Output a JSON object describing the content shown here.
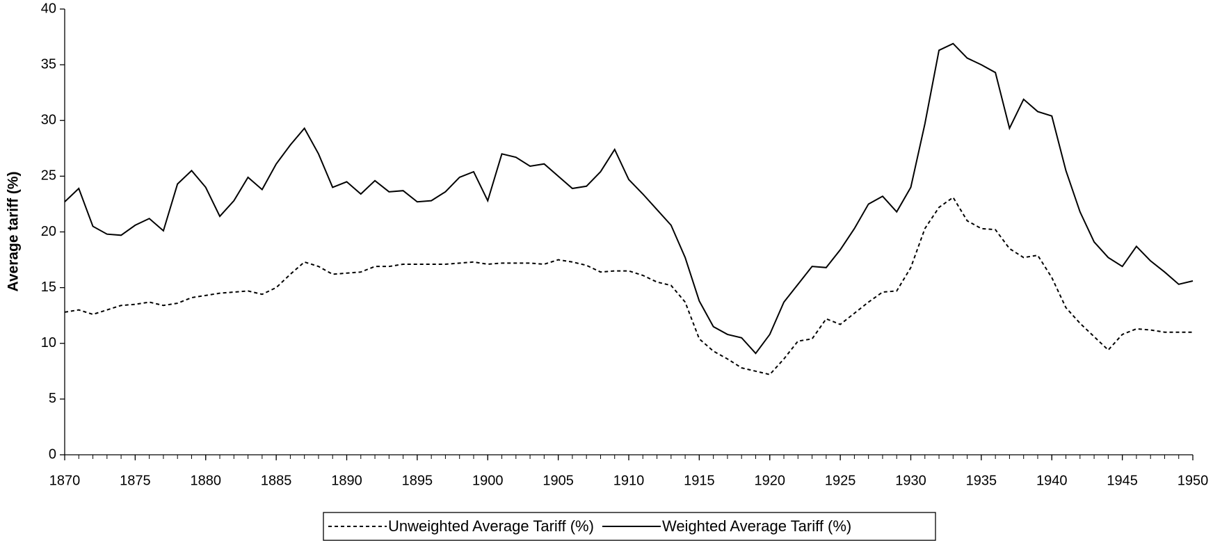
{
  "chart_data": {
    "type": "line",
    "y_label": "Average tariff (%)",
    "x": [
      1870,
      1871,
      1872,
      1873,
      1874,
      1875,
      1876,
      1877,
      1878,
      1879,
      1880,
      1881,
      1882,
      1883,
      1884,
      1885,
      1886,
      1887,
      1888,
      1889,
      1890,
      1891,
      1892,
      1893,
      1894,
      1895,
      1896,
      1897,
      1898,
      1899,
      1900,
      1901,
      1902,
      1903,
      1904,
      1905,
      1906,
      1907,
      1908,
      1909,
      1910,
      1911,
      1912,
      1913,
      1914,
      1915,
      1916,
      1917,
      1918,
      1919,
      1920,
      1921,
      1922,
      1923,
      1924,
      1925,
      1926,
      1927,
      1928,
      1929,
      1930,
      1931,
      1932,
      1933,
      1934,
      1935,
      1936,
      1937,
      1938,
      1939,
      1940,
      1941,
      1942,
      1943,
      1944,
      1945,
      1946,
      1947,
      1948,
      1949,
      1950
    ],
    "series": [
      {
        "name": "Unweighted Average Tariff (%)",
        "color": "#000000",
        "line_style": "dashed",
        "values": [
          12.8,
          13.0,
          12.6,
          13.0,
          13.4,
          13.5,
          13.7,
          13.4,
          13.6,
          14.1,
          14.3,
          14.5,
          14.6,
          14.7,
          14.4,
          15.0,
          16.2,
          17.3,
          16.9,
          16.2,
          16.3,
          16.4,
          16.9,
          16.9,
          17.1,
          17.1,
          17.1,
          17.1,
          17.2,
          17.3,
          17.1,
          17.2,
          17.2,
          17.2,
          17.1,
          17.5,
          17.3,
          17.0,
          16.4,
          16.5,
          16.5,
          16.1,
          15.5,
          15.2,
          13.7,
          10.4,
          9.3,
          8.6,
          7.8,
          7.5,
          7.2,
          8.6,
          10.2,
          10.4,
          12.2,
          11.7,
          12.7,
          13.7,
          14.6,
          14.7,
          16.8,
          20.3,
          22.2,
          23.1,
          21.0,
          20.3,
          20.2,
          18.5,
          17.7,
          17.9,
          15.9,
          13.2,
          11.8,
          10.6,
          9.4,
          10.8,
          11.3,
          11.2,
          11.0,
          11.0,
          11.0
        ]
      },
      {
        "name": "Weighted Average Tariff (%)",
        "color": "#000000",
        "line_style": "solid",
        "values": [
          22.7,
          23.9,
          20.5,
          19.8,
          19.7,
          20.6,
          21.2,
          20.1,
          24.3,
          25.5,
          24.0,
          21.4,
          22.8,
          24.9,
          23.8,
          26.1,
          27.8,
          29.3,
          27.0,
          24.0,
          24.5,
          23.4,
          24.6,
          23.6,
          23.7,
          22.7,
          22.8,
          23.6,
          24.9,
          25.4,
          22.8,
          27.0,
          26.7,
          25.9,
          26.1,
          25.0,
          23.9,
          24.1,
          25.4,
          27.4,
          24.7,
          23.4,
          22.0,
          20.6,
          17.7,
          13.8,
          11.5,
          10.8,
          10.5,
          9.1,
          10.8,
          13.7,
          15.3,
          16.9,
          16.8,
          18.4,
          20.3,
          22.5,
          23.2,
          21.8,
          24.0,
          29.7,
          36.3,
          36.9,
          35.6,
          35.0,
          34.3,
          29.3,
          31.9,
          30.8,
          30.4,
          25.5,
          21.8,
          19.1,
          17.7,
          16.9,
          18.7,
          17.4,
          16.4,
          15.3,
          15.6
        ]
      }
    ],
    "xlim": [
      1870,
      1950
    ],
    "xticks": [
      1870,
      1875,
      1880,
      1885,
      1890,
      1895,
      1900,
      1905,
      1910,
      1915,
      1920,
      1925,
      1930,
      1935,
      1940,
      1945,
      1950
    ],
    "ylim": [
      0,
      40
    ],
    "yticks": [
      0,
      5,
      10,
      15,
      20,
      25,
      30,
      35,
      40
    ],
    "grid": false,
    "legend": "bottom"
  }
}
